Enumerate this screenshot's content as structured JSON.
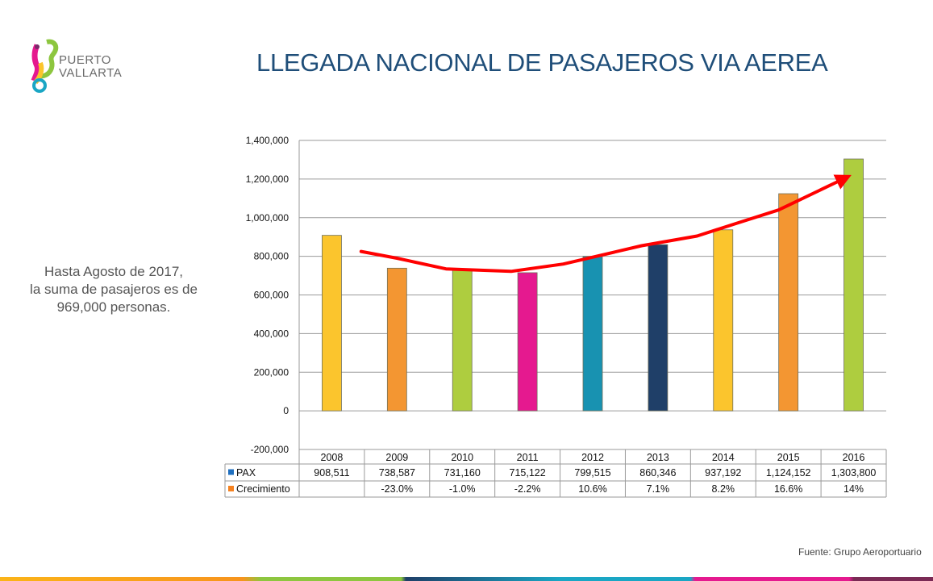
{
  "header": {
    "logo_line1": "PUERTO",
    "logo_line2": "VALLARTA",
    "title": "LLEGADA NACIONAL DE PASAJEROS VIA AEREA"
  },
  "note": {
    "line1": "Hasta Agosto de 2017,",
    "line2": "la suma de pasajeros es de",
    "line3": "969,000 personas."
  },
  "source": "Fuente: Grupo Aeroportuario",
  "colors": {
    "title": "#1f4e79",
    "trend": "#ff0000",
    "grid": "#9a9a9a",
    "legend_pax": "#1f6fbf",
    "legend_growth": "#f58220"
  },
  "chart_data": {
    "type": "bar",
    "title": "LLEGADA NACIONAL DE PASAJEROS VIA AEREA",
    "xlabel": "",
    "ylabel": "",
    "ylim": [
      -200000,
      1400000
    ],
    "yticks": [
      -200000,
      0,
      200000,
      400000,
      600000,
      800000,
      1000000,
      1200000,
      1400000
    ],
    "ytick_labels": [
      "-200,000",
      "0",
      "200,000",
      "400,000",
      "600,000",
      "800,000",
      "1,000,000",
      "1,200,000",
      "1,400,000"
    ],
    "grid": true,
    "categories": [
      "2008",
      "2009",
      "2010",
      "2011",
      "2012",
      "2013",
      "2014",
      "2015",
      "2016"
    ],
    "series": [
      {
        "name": "PAX",
        "values": [
          908511,
          738587,
          731160,
          715122,
          799515,
          860346,
          937192,
          1124152,
          1303800
        ],
        "labels": [
          "908,511",
          "738,587",
          "731,160",
          "715,122",
          "799,515",
          "860,346",
          "937,192",
          "1,124,152",
          "1,303,800"
        ],
        "bar_colors": [
          "#fbc52d",
          "#f39632",
          "#aecd3f",
          "#e5198f",
          "#1892b1",
          "#1f3f68",
          "#fbc52d",
          "#f39632",
          "#aecd3f"
        ]
      },
      {
        "name": "Crecimiento",
        "values": [
          null,
          -23.0,
          -1.0,
          -2.2,
          10.6,
          7.1,
          8.2,
          16.6,
          14
        ],
        "labels": [
          "",
          "-23.0%",
          "-1.0%",
          "-2.2%",
          "10.6%",
          "7.1%",
          "8.2%",
          "16.6%",
          "14%"
        ]
      }
    ],
    "trend_line": {
      "description": "hand-drawn red trend arrow",
      "x": [
        0.45,
        1.0,
        1.75,
        2.75,
        3.55,
        4.75,
        5.6,
        6.2,
        6.85,
        7.9
      ],
      "y": [
        825000,
        790000,
        735000,
        722000,
        760000,
        855000,
        905000,
        970000,
        1040000,
        1210000
      ]
    },
    "legend": "table-rows"
  }
}
